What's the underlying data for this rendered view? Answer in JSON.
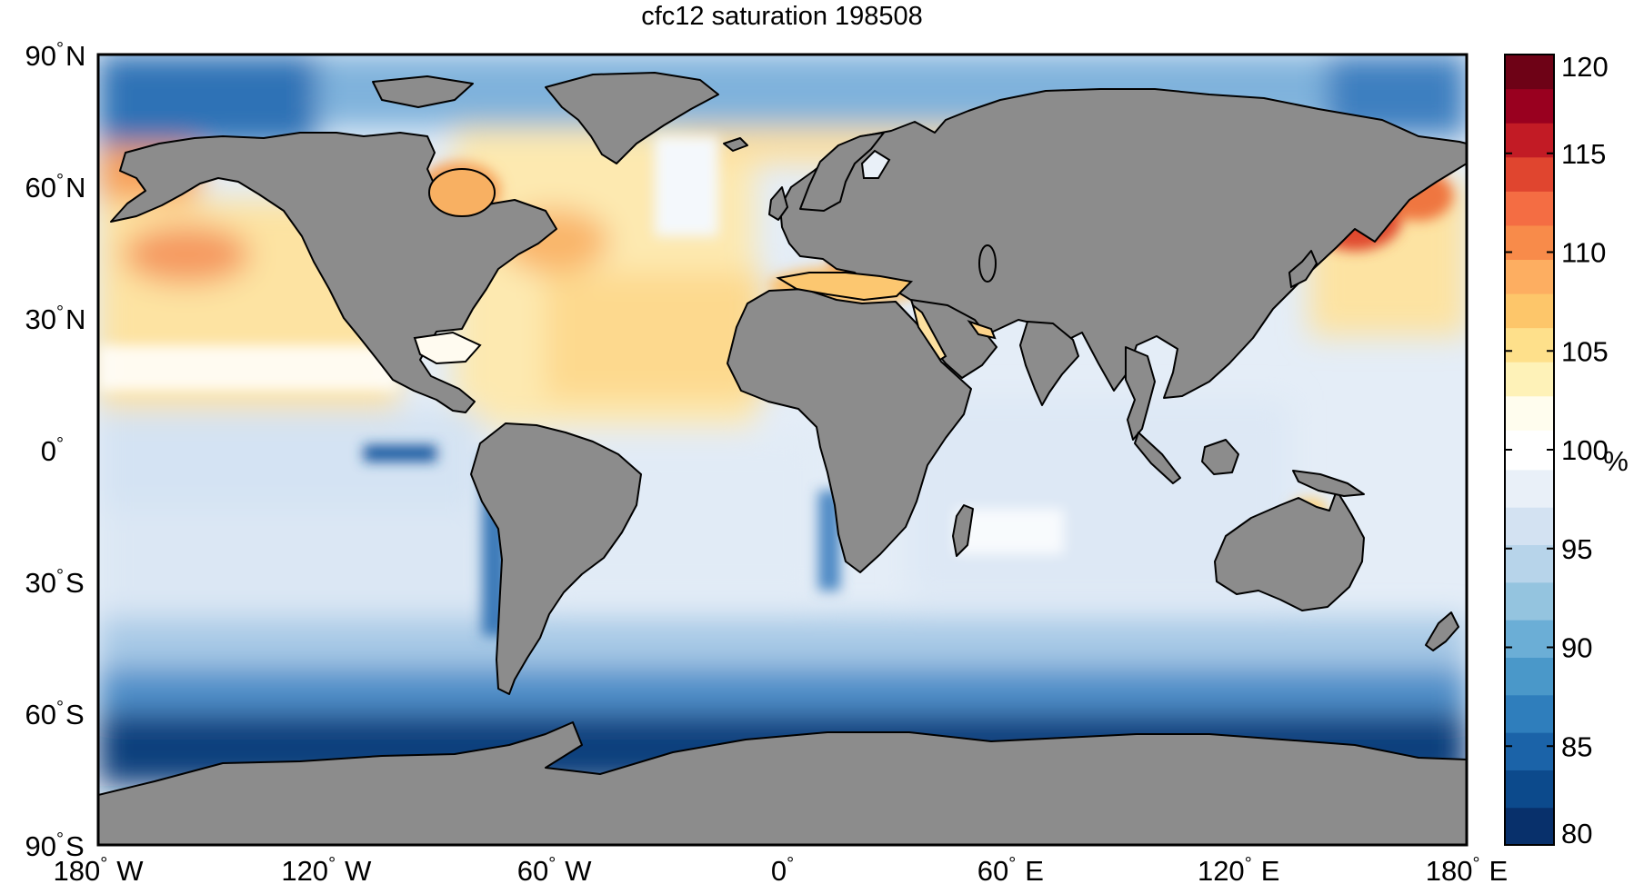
{
  "title": "cfc12 saturation 198508",
  "lat_ticks": [
    {
      "deg": "90",
      "hemi": "N",
      "lat": 90
    },
    {
      "deg": "60",
      "hemi": "N",
      "lat": 60
    },
    {
      "deg": "30",
      "hemi": "N",
      "lat": 30
    },
    {
      "deg": "0",
      "hemi": "",
      "lat": 0
    },
    {
      "deg": "30",
      "hemi": "S",
      "lat": -30
    },
    {
      "deg": "60",
      "hemi": "S",
      "lat": -60
    },
    {
      "deg": "90",
      "hemi": "S",
      "lat": -90
    }
  ],
  "lon_ticks": [
    {
      "deg": "180",
      "hemi": "W",
      "lon": -180
    },
    {
      "deg": "120",
      "hemi": "W",
      "lon": -120
    },
    {
      "deg": "60",
      "hemi": "W",
      "lon": -60
    },
    {
      "deg": "0",
      "hemi": "",
      "lon": 0
    },
    {
      "deg": "60",
      "hemi": "E",
      "lon": 60
    },
    {
      "deg": "120",
      "hemi": "E",
      "lon": 120
    },
    {
      "deg": "180",
      "hemi": "E",
      "lon": 180
    }
  ],
  "degree_symbol": "°",
  "colorbar": {
    "unit": "%",
    "range": [
      80,
      120
    ],
    "ticks": [
      "80",
      "85",
      "90",
      "95",
      "100",
      "105",
      "110",
      "115",
      "120"
    ],
    "white_band": [
      99,
      101
    ],
    "low_colors": [
      "#08306b",
      "#0c4a8c",
      "#1b63a8",
      "#2f7ebc",
      "#4a98c9",
      "#6baed6",
      "#94c4df",
      "#b7d4ea",
      "#d3e2f2",
      "#e9f0f8"
    ],
    "high_colors": [
      "#fffdee",
      "#fef2b8",
      "#fee08b",
      "#fdc66a",
      "#fdae61",
      "#f88b4a",
      "#f46d43",
      "#e0452f",
      "#c21b25",
      "#99001f",
      "#6e0216"
    ]
  },
  "map_colors": {
    "land": "#8c8c8c",
    "coast": "#000000",
    "ocean_background": "#e4edf7"
  }
}
